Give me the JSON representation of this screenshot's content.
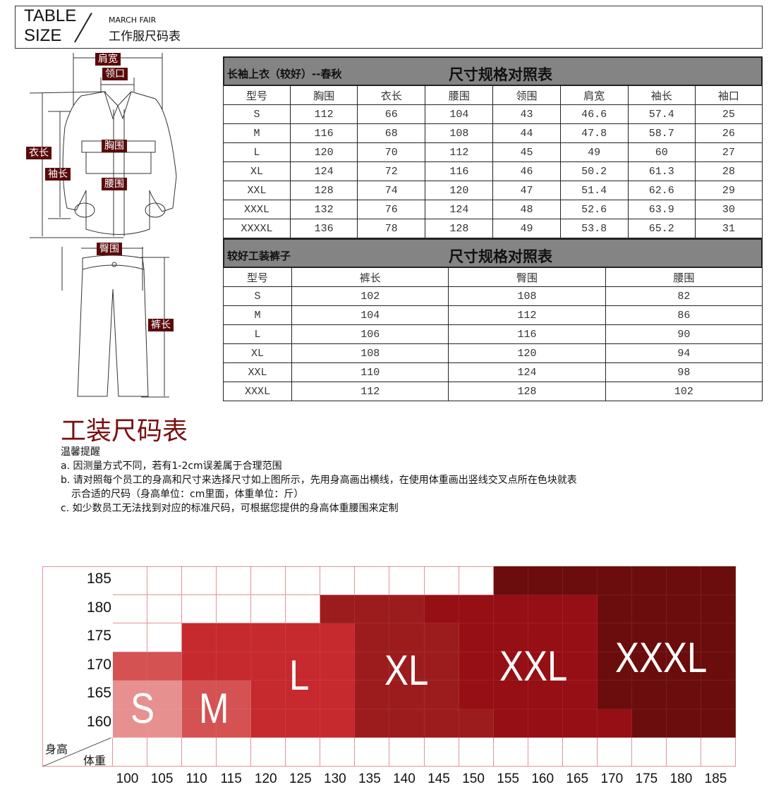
{
  "banner": {
    "line1": "TABLE",
    "line2": "SIZE",
    "subtitle": "MARCH FAIR",
    "title": "工作服尺码表"
  },
  "diagram_labels": {
    "shoulder": "肩宽",
    "collar": "领口",
    "length": "衣长",
    "sleeve": "袖长",
    "chest": "胸围",
    "waist": "腰围",
    "hip": "臀围",
    "pants_length": "裤长"
  },
  "jacket_table": {
    "caption": "长袖上衣（较好）--春秋",
    "title": "尺寸规格对照表",
    "headers": [
      "型号",
      "胸围",
      "衣长",
      "腰围",
      "领围",
      "肩宽",
      "袖长",
      "袖口"
    ],
    "rows": [
      [
        "S",
        "112",
        "66",
        "104",
        "43",
        "46.6",
        "57.4",
        "25"
      ],
      [
        "M",
        "116",
        "68",
        "108",
        "44",
        "47.8",
        "58.7",
        "26"
      ],
      [
        "L",
        "120",
        "70",
        "112",
        "45",
        "49",
        "60",
        "27"
      ],
      [
        "XL",
        "124",
        "72",
        "116",
        "46",
        "50.2",
        "61.3",
        "28"
      ],
      [
        "XXL",
        "128",
        "74",
        "120",
        "47",
        "51.4",
        "62.6",
        "29"
      ],
      [
        "XXXL",
        "132",
        "76",
        "124",
        "48",
        "52.6",
        "63.9",
        "30"
      ],
      [
        "XXXXL",
        "136",
        "78",
        "128",
        "49",
        "53.8",
        "65.2",
        "31"
      ]
    ]
  },
  "pants_table": {
    "caption": "较好工装裤子",
    "title": "尺寸规格对照表",
    "headers": [
      "型号",
      "裤长",
      "臀围",
      "腰围"
    ],
    "rows": [
      [
        "S",
        "102",
        "108",
        "82"
      ],
      [
        "M",
        "104",
        "112",
        "86"
      ],
      [
        "L",
        "106",
        "116",
        "90"
      ],
      [
        "XL",
        "108",
        "120",
        "94"
      ],
      [
        "XXL",
        "110",
        "124",
        "98"
      ],
      [
        "XXXL",
        "112",
        "128",
        "102"
      ]
    ]
  },
  "section_title": "工装尺码表",
  "notes": {
    "heading": "温馨提醒",
    "a": "a. 因测量方式不同，若有1-2cm误差属于合理范围",
    "b1": "b. 请对照每个员工的身高和尺寸来选择尺寸如上图所示，先用身高画出横线，在使用体重画出竖线交叉点所在色块就表",
    "b2": "示合适的尺码（身高单位：cm里面，体重单位：斤）",
    "c": "c. 如少数员工无法找到对应的标准尺码，可根据您提供的身高体重腰围来定制"
  },
  "chart_data": {
    "type": "heatmap",
    "ylabel": "身高",
    "xlabel": "体重",
    "y": [
      "185",
      "180",
      "175",
      "170",
      "165",
      "160"
    ],
    "x": [
      "100",
      "105",
      "110",
      "115",
      "120",
      "125",
      "130",
      "135",
      "140",
      "145",
      "150",
      "155",
      "160",
      "165",
      "170",
      "175",
      "180",
      "185"
    ],
    "cells": [
      [
        "",
        "",
        "",
        "",
        "",
        "",
        "",
        "",
        "",
        "",
        "",
        "XXXL",
        "XXXL",
        "XXXL",
        "XXXL",
        "XXXL",
        "XXXL",
        "XXXL"
      ],
      [
        "",
        "",
        "",
        "",
        "",
        "",
        "XL",
        "XL",
        "XL",
        "XXL",
        "XXL",
        "XXL",
        "XXL",
        "XXL",
        "XXXL",
        "XXXL",
        "XXXL",
        "XXXL"
      ],
      [
        "",
        "",
        "L",
        "L",
        "L",
        "L",
        "L",
        "XL",
        "XL",
        "XL",
        "XXL",
        "XXL",
        "XXL",
        "XXL",
        "XXXL",
        "XXXL",
        "XXXL",
        "XXXL"
      ],
      [
        "M",
        "M",
        "L",
        "L",
        "L",
        "L",
        "L",
        "XL",
        "XL",
        "XL",
        "XXL",
        "XXL",
        "XXL",
        "XXL",
        "XXXL",
        "XXXL",
        "XXXL",
        "XXXL"
      ],
      [
        "S",
        "S",
        "M",
        "M",
        "L",
        "L",
        "L",
        "XL",
        "XL",
        "XL",
        "XXL",
        "XXL",
        "XXL",
        "XXL",
        "XXXL",
        "XXXL",
        "XXXL",
        "XXXL"
      ],
      [
        "S",
        "S",
        "M",
        "M",
        "L",
        "L",
        "L",
        "XL",
        "XL",
        "XL",
        "XL",
        "XXL",
        "XXL",
        "XXL",
        "XXL",
        "XXXL",
        "XXXL",
        "XXXL"
      ]
    ],
    "size_labels": [
      "S",
      "M",
      "L",
      "XL",
      "XXL",
      "XXXL"
    ],
    "colors": {
      "S": "#e79090",
      "M": "#d45252",
      "L": "#c62a2e",
      "XL": "#9c1c1e",
      "XXL": "#960f14",
      "XXXL": "#6b0d0d"
    }
  }
}
